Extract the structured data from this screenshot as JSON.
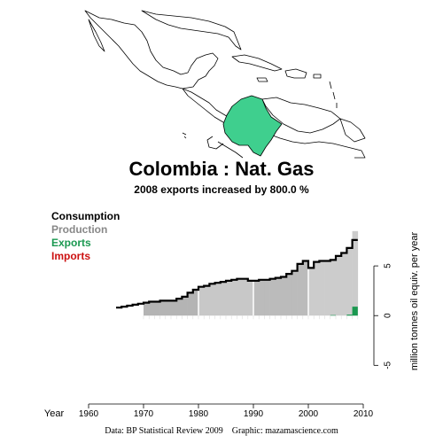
{
  "header": {
    "title": "Colombia :  Nat. Gas",
    "subtitle": "2008 exports increased by 800.0 %"
  },
  "legend": {
    "consumption": {
      "label": "Consumption",
      "color": "#000000"
    },
    "production": {
      "label": "Production",
      "color": "#888888"
    },
    "exports": {
      "label": "Exports",
      "color": "#1a9850"
    },
    "imports": {
      "label": "Imports",
      "color": "#cc1111"
    }
  },
  "map": {
    "highlight_color": "#3fcf8e",
    "outline_color": "#000000"
  },
  "footer": {
    "source": "Data: BP Statistical Review 2009",
    "graphic": "Graphic: mazamascience.com"
  },
  "chart_data": {
    "type": "area",
    "title": "Colombia :  Nat. Gas",
    "subtitle": "2008 exports increased by 800.0 %",
    "xlabel": "Year",
    "ylabel": "million tonnes oil equiv. per year",
    "xlim": [
      1960,
      2010
    ],
    "ylim": [
      -8,
      10
    ],
    "xticks": [
      1960,
      1970,
      1980,
      1990,
      2000,
      2010
    ],
    "yticks": [
      -5,
      0,
      5
    ],
    "grid": false,
    "legend_position": "top-left",
    "series": [
      {
        "name": "Consumption",
        "style": "step-line",
        "x": [
          1965,
          1966,
          1967,
          1968,
          1969,
          1970,
          1971,
          1972,
          1973,
          1974,
          1975,
          1976,
          1977,
          1978,
          1979,
          1980,
          1981,
          1982,
          1983,
          1984,
          1985,
          1986,
          1987,
          1988,
          1989,
          1990,
          1991,
          1992,
          1993,
          1994,
          1995,
          1996,
          1997,
          1998,
          1999,
          2000,
          2001,
          2002,
          2003,
          2004,
          2005,
          2006,
          2007,
          2008
        ],
        "values": [
          0.8,
          0.9,
          1.0,
          1.1,
          1.2,
          1.3,
          1.4,
          1.4,
          1.5,
          1.5,
          1.5,
          1.7,
          1.9,
          2.3,
          2.6,
          2.9,
          3.0,
          3.2,
          3.3,
          3.4,
          3.5,
          3.6,
          3.7,
          3.7,
          3.5,
          3.5,
          3.6,
          3.6,
          3.7,
          3.8,
          3.9,
          4.2,
          4.5,
          5.2,
          5.5,
          4.8,
          5.4,
          5.5,
          5.5,
          5.6,
          6.0,
          6.3,
          6.8,
          7.6
        ]
      },
      {
        "name": "Production",
        "style": "area",
        "x": [
          1970,
          1971,
          1972,
          1973,
          1974,
          1975,
          1976,
          1977,
          1978,
          1979,
          1980,
          1981,
          1982,
          1983,
          1984,
          1985,
          1986,
          1987,
          1988,
          1989,
          1990,
          1991,
          1992,
          1993,
          1994,
          1995,
          1996,
          1997,
          1998,
          1999,
          2000,
          2001,
          2002,
          2003,
          2004,
          2005,
          2006,
          2007,
          2008
        ],
        "values": [
          1.3,
          1.4,
          1.4,
          1.5,
          1.5,
          1.5,
          1.7,
          1.9,
          2.3,
          2.6,
          2.9,
          3.0,
          3.2,
          3.3,
          3.4,
          3.5,
          3.6,
          3.7,
          3.7,
          3.5,
          3.5,
          3.6,
          3.6,
          3.7,
          3.8,
          3.9,
          4.2,
          4.5,
          5.2,
          5.5,
          4.8,
          5.4,
          5.5,
          5.5,
          5.6,
          6.0,
          6.3,
          6.8,
          8.5
        ]
      },
      {
        "name": "Exports",
        "style": "area",
        "x": [
          2003,
          2004,
          2005,
          2006,
          2007,
          2008
        ],
        "values": [
          0.0,
          0.05,
          0.0,
          0.0,
          0.1,
          0.9
        ]
      },
      {
        "name": "Imports",
        "style": "area",
        "x": [],
        "values": []
      }
    ]
  }
}
